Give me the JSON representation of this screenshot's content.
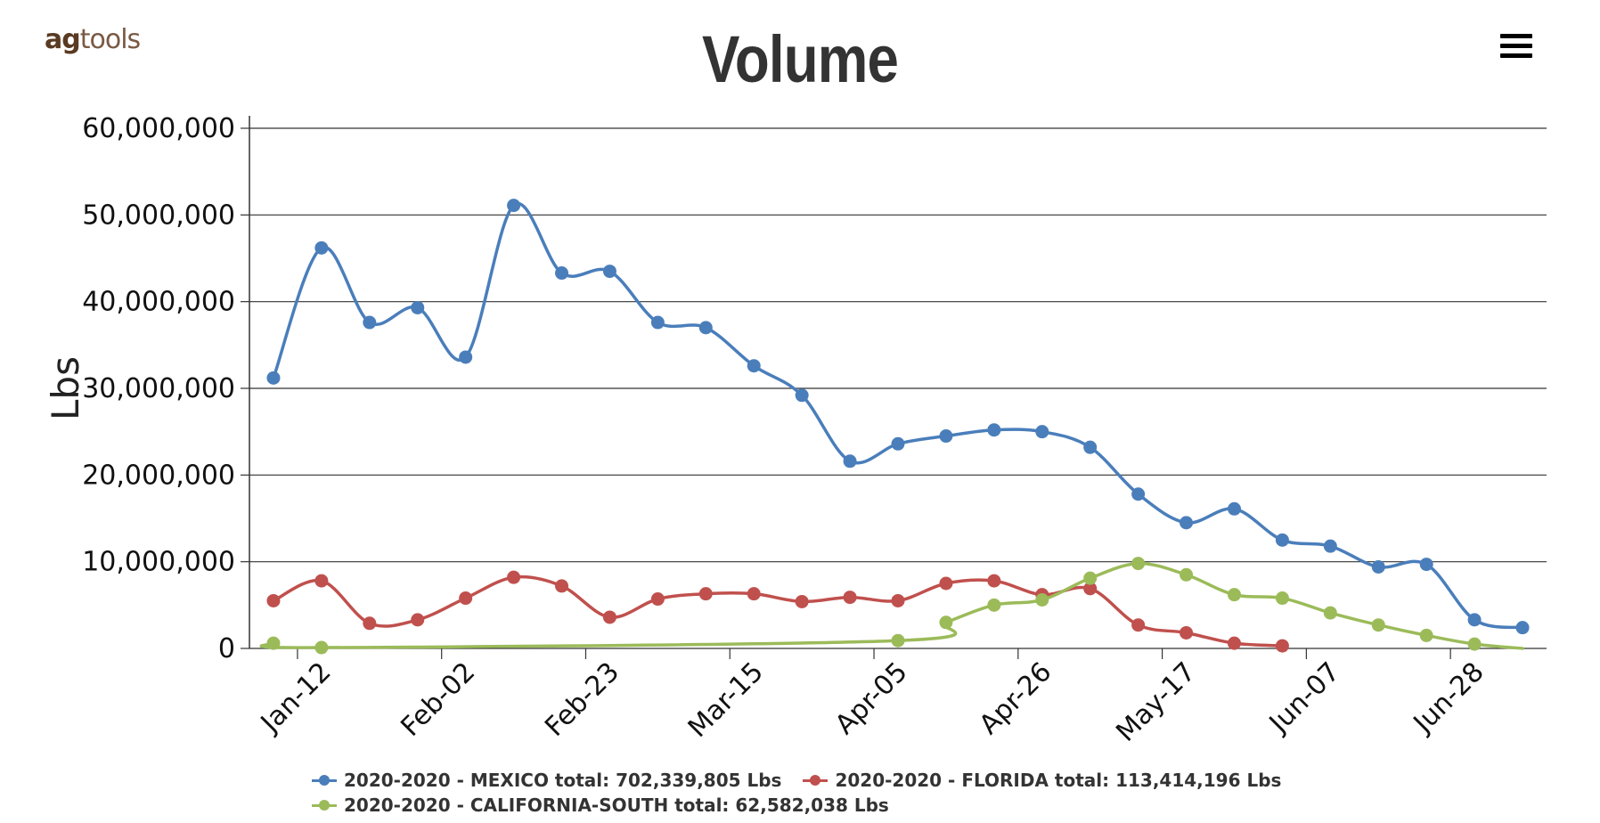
{
  "brand": {
    "part1": "ag",
    "part2": "tools"
  },
  "menu": {
    "icon": "hamburger-menu-icon"
  },
  "chart_data": {
    "type": "line",
    "title": "Volume",
    "ylabel": "Lbs",
    "xlabel": "",
    "ylim": [
      0,
      60000000
    ],
    "yticks": [
      0,
      10000000,
      20000000,
      30000000,
      40000000,
      50000000,
      60000000
    ],
    "ytick_labels": [
      "0",
      "10,000,000",
      "20,000,000",
      "30,000,000",
      "40,000,000",
      "50,000,000",
      "60,000,000"
    ],
    "x": [
      "Jan-05",
      "Jan-12",
      "Jan-19",
      "Jan-26",
      "Feb-02",
      "Feb-09",
      "Feb-16",
      "Feb-23",
      "Mar-01",
      "Mar-08",
      "Mar-15",
      "Mar-22",
      "Mar-29",
      "Apr-05",
      "Apr-12",
      "Apr-19",
      "Apr-26",
      "May-03",
      "May-10",
      "May-17",
      "May-24",
      "May-31",
      "Jun-07",
      "Jun-14",
      "Jun-21",
      "Jun-28",
      "Jul-05"
    ],
    "xtick_labels": [
      "Jan-12",
      "Feb-02",
      "Feb-23",
      "Mar-15",
      "Apr-05",
      "Apr-26",
      "May-17",
      "Jun-07",
      "Jun-28"
    ],
    "grid": true,
    "legend_position": "bottom",
    "series": [
      {
        "name": "2020-2020 - MEXICO",
        "color": "#4a7ebb",
        "values": [
          31200000,
          46200000,
          37600000,
          39300000,
          33600000,
          51100000,
          43300000,
          43500000,
          37600000,
          37000000,
          32600000,
          29200000,
          21600000,
          23600000,
          24500000,
          25200000,
          25000000,
          23200000,
          17800000,
          14500000,
          16100000,
          12500000,
          11800000,
          9400000,
          9700000,
          3300000,
          2400000
        ]
      },
      {
        "name": "2020-2020 - FLORIDA",
        "color": "#c0504d",
        "values": [
          5500000,
          7800000,
          2900000,
          3300000,
          5800000,
          8200000,
          7200000,
          3600000,
          5700000,
          6300000,
          6300000,
          5400000,
          5900000,
          5500000,
          7500000,
          7800000,
          6200000,
          6900000,
          2700000,
          1800000,
          600000,
          300000,
          null,
          null,
          null,
          null,
          null
        ]
      },
      {
        "name": "2020-2020 - CALIFORNIA-SOUTH",
        "color": "#9bbb59",
        "values": [
          600000,
          100000,
          null,
          null,
          null,
          null,
          null,
          null,
          null,
          null,
          null,
          null,
          null,
          900000,
          3000000,
          5000000,
          5600000,
          8100000,
          9800000,
          8500000,
          6200000,
          5800000,
          4100000,
          2700000,
          1500000,
          500000,
          0
        ]
      }
    ],
    "legend_entries": [
      "2020-2020 - MEXICO total: 702,339,805 Lbs",
      "2020-2020 - FLORIDA total: 113,414,196 Lbs",
      "2020-2020 - CALIFORNIA-SOUTH total: 62,582,038 Lbs"
    ]
  }
}
